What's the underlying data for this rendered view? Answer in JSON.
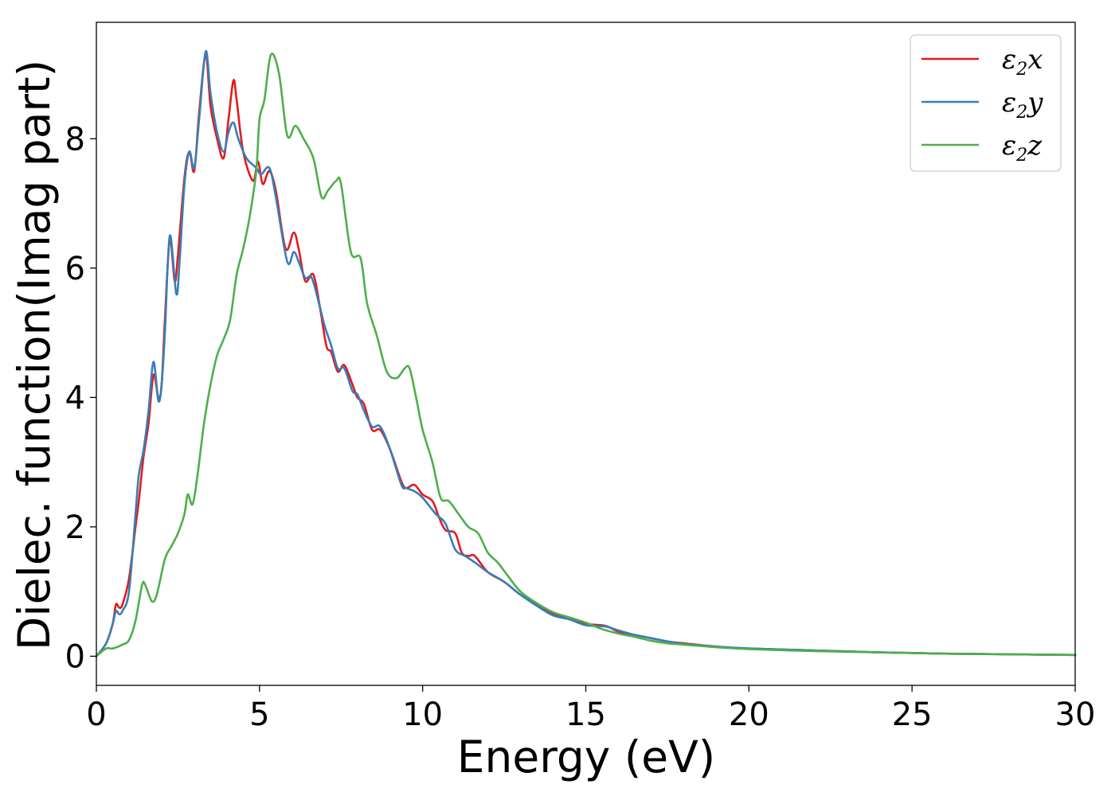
{
  "chart_data": {
    "type": "line",
    "title": "",
    "xlabel": "Energy (eV)",
    "ylabel": "Dielec. function(Imag part)",
    "xlim": [
      0,
      30
    ],
    "ylim": [
      -0.45,
      9.8
    ],
    "xticks": [
      0,
      5,
      10,
      15,
      20,
      25,
      30
    ],
    "yticks": [
      0,
      2,
      4,
      6,
      8
    ],
    "grid": false,
    "legend_position": "top-right",
    "series": [
      {
        "name": "ε2x",
        "legend_base": "ε",
        "legend_sub": "2",
        "legend_var": "x",
        "color": "#e41a1c",
        "points": [
          [
            0,
            0
          ],
          [
            0.3,
            0.2
          ],
          [
            0.5,
            0.5
          ],
          [
            0.6,
            0.8
          ],
          [
            0.7,
            0.75
          ],
          [
            0.8,
            0.8
          ],
          [
            1.0,
            1.2
          ],
          [
            1.2,
            2.0
          ],
          [
            1.3,
            2.4
          ],
          [
            1.45,
            3.1
          ],
          [
            1.6,
            3.6
          ],
          [
            1.75,
            4.35
          ],
          [
            1.9,
            4.0
          ],
          [
            2.0,
            4.2
          ],
          [
            2.1,
            5.2
          ],
          [
            2.25,
            6.45
          ],
          [
            2.4,
            5.8
          ],
          [
            2.5,
            6.2
          ],
          [
            2.7,
            7.4
          ],
          [
            2.85,
            7.8
          ],
          [
            3.0,
            7.5
          ],
          [
            3.15,
            8.4
          ],
          [
            3.35,
            9.3
          ],
          [
            3.5,
            8.5
          ],
          [
            3.7,
            8.0
          ],
          [
            3.9,
            7.7
          ],
          [
            4.05,
            8.3
          ],
          [
            4.2,
            8.9
          ],
          [
            4.3,
            8.6
          ],
          [
            4.5,
            7.8
          ],
          [
            4.8,
            7.35
          ],
          [
            4.95,
            7.65
          ],
          [
            5.1,
            7.3
          ],
          [
            5.3,
            7.5
          ],
          [
            5.5,
            7.2
          ],
          [
            5.8,
            6.3
          ],
          [
            6.05,
            6.55
          ],
          [
            6.2,
            6.3
          ],
          [
            6.4,
            5.8
          ],
          [
            6.65,
            5.9
          ],
          [
            6.85,
            5.4
          ],
          [
            7.05,
            4.8
          ],
          [
            7.2,
            4.7
          ],
          [
            7.4,
            4.4
          ],
          [
            7.6,
            4.5
          ],
          [
            7.85,
            4.2
          ],
          [
            8.0,
            4.0
          ],
          [
            8.2,
            3.9
          ],
          [
            8.45,
            3.5
          ],
          [
            8.7,
            3.5
          ],
          [
            9.0,
            3.2
          ],
          [
            9.35,
            2.7
          ],
          [
            9.5,
            2.6
          ],
          [
            9.75,
            2.65
          ],
          [
            10.0,
            2.5
          ],
          [
            10.3,
            2.4
          ],
          [
            10.5,
            2.15
          ],
          [
            10.7,
            1.95
          ],
          [
            11.0,
            1.9
          ],
          [
            11.2,
            1.6
          ],
          [
            11.4,
            1.55
          ],
          [
            11.6,
            1.55
          ],
          [
            12.0,
            1.3
          ],
          [
            12.5,
            1.15
          ],
          [
            13.0,
            0.95
          ],
          [
            13.5,
            0.8
          ],
          [
            14.0,
            0.65
          ],
          [
            14.5,
            0.58
          ],
          [
            15.0,
            0.5
          ],
          [
            15.6,
            0.47
          ],
          [
            16.0,
            0.38
          ],
          [
            16.5,
            0.33
          ],
          [
            17.0,
            0.28
          ],
          [
            17.5,
            0.23
          ],
          [
            18.0,
            0.2
          ],
          [
            19.0,
            0.15
          ],
          [
            20.0,
            0.12
          ],
          [
            22.0,
            0.09
          ],
          [
            24.0,
            0.06
          ],
          [
            26.0,
            0.04
          ],
          [
            28.0,
            0.03
          ],
          [
            30.0,
            0.02
          ]
        ]
      },
      {
        "name": "ε2y",
        "legend_base": "ε",
        "legend_sub": "2",
        "legend_var": "y",
        "color": "#377eb8",
        "points": [
          [
            0,
            0
          ],
          [
            0.3,
            0.2
          ],
          [
            0.5,
            0.5
          ],
          [
            0.6,
            0.7
          ],
          [
            0.7,
            0.65
          ],
          [
            0.8,
            0.7
          ],
          [
            1.0,
            1.0
          ],
          [
            1.2,
            2.2
          ],
          [
            1.3,
            2.8
          ],
          [
            1.45,
            3.2
          ],
          [
            1.6,
            3.8
          ],
          [
            1.75,
            4.55
          ],
          [
            1.9,
            3.95
          ],
          [
            2.0,
            4.2
          ],
          [
            2.1,
            5.0
          ],
          [
            2.25,
            6.5
          ],
          [
            2.45,
            5.6
          ],
          [
            2.55,
            6.1
          ],
          [
            2.7,
            7.3
          ],
          [
            2.85,
            7.8
          ],
          [
            3.0,
            7.55
          ],
          [
            3.15,
            8.3
          ],
          [
            3.35,
            9.35
          ],
          [
            3.5,
            8.7
          ],
          [
            3.7,
            8.1
          ],
          [
            3.9,
            7.8
          ],
          [
            4.05,
            8.1
          ],
          [
            4.2,
            8.25
          ],
          [
            4.35,
            8.0
          ],
          [
            4.6,
            7.7
          ],
          [
            4.9,
            7.55
          ],
          [
            5.05,
            7.45
          ],
          [
            5.3,
            7.55
          ],
          [
            5.5,
            7.1
          ],
          [
            5.85,
            6.1
          ],
          [
            6.05,
            6.25
          ],
          [
            6.2,
            6.1
          ],
          [
            6.4,
            5.85
          ],
          [
            6.6,
            5.85
          ],
          [
            6.85,
            5.4
          ],
          [
            7.0,
            5.1
          ],
          [
            7.2,
            4.8
          ],
          [
            7.4,
            4.45
          ],
          [
            7.6,
            4.45
          ],
          [
            7.85,
            4.1
          ],
          [
            8.0,
            4.05
          ],
          [
            8.2,
            3.8
          ],
          [
            8.45,
            3.55
          ],
          [
            8.7,
            3.55
          ],
          [
            9.0,
            3.2
          ],
          [
            9.35,
            2.65
          ],
          [
            9.5,
            2.6
          ],
          [
            9.75,
            2.55
          ],
          [
            10.0,
            2.45
          ],
          [
            10.4,
            2.2
          ],
          [
            10.7,
            2.05
          ],
          [
            11.0,
            1.65
          ],
          [
            11.3,
            1.55
          ],
          [
            11.6,
            1.45
          ],
          [
            12.0,
            1.3
          ],
          [
            12.5,
            1.15
          ],
          [
            13.0,
            0.95
          ],
          [
            13.5,
            0.78
          ],
          [
            14.0,
            0.63
          ],
          [
            14.5,
            0.57
          ],
          [
            15.0,
            0.48
          ],
          [
            15.6,
            0.46
          ],
          [
            16.0,
            0.4
          ],
          [
            16.5,
            0.33
          ],
          [
            17.0,
            0.28
          ],
          [
            17.5,
            0.23
          ],
          [
            18.0,
            0.19
          ],
          [
            19.0,
            0.15
          ],
          [
            20.0,
            0.12
          ],
          [
            22.0,
            0.09
          ],
          [
            24.0,
            0.06
          ],
          [
            26.0,
            0.04
          ],
          [
            28.0,
            0.03
          ],
          [
            30.0,
            0.02
          ]
        ]
      },
      {
        "name": "ε2z",
        "legend_base": "ε",
        "legend_sub": "2",
        "legend_var": "z",
        "color": "#4daf4a",
        "points": [
          [
            0,
            0
          ],
          [
            0.3,
            0.12
          ],
          [
            0.5,
            0.12
          ],
          [
            0.8,
            0.18
          ],
          [
            1.0,
            0.25
          ],
          [
            1.2,
            0.55
          ],
          [
            1.4,
            1.1
          ],
          [
            1.5,
            1.1
          ],
          [
            1.7,
            0.85
          ],
          [
            1.85,
            0.95
          ],
          [
            2.1,
            1.5
          ],
          [
            2.3,
            1.7
          ],
          [
            2.5,
            1.9
          ],
          [
            2.7,
            2.2
          ],
          [
            2.8,
            2.5
          ],
          [
            2.95,
            2.35
          ],
          [
            3.1,
            2.8
          ],
          [
            3.3,
            3.6
          ],
          [
            3.5,
            4.2
          ],
          [
            3.7,
            4.65
          ],
          [
            3.9,
            4.9
          ],
          [
            4.1,
            5.2
          ],
          [
            4.3,
            5.9
          ],
          [
            4.5,
            6.3
          ],
          [
            4.7,
            6.8
          ],
          [
            4.9,
            7.5
          ],
          [
            5.0,
            8.3
          ],
          [
            5.15,
            8.6
          ],
          [
            5.35,
            9.3
          ],
          [
            5.6,
            9.0
          ],
          [
            5.85,
            8.05
          ],
          [
            6.1,
            8.2
          ],
          [
            6.35,
            8.0
          ],
          [
            6.65,
            7.7
          ],
          [
            6.9,
            7.1
          ],
          [
            7.1,
            7.2
          ],
          [
            7.35,
            7.35
          ],
          [
            7.5,
            7.3
          ],
          [
            7.8,
            6.25
          ],
          [
            8.1,
            6.15
          ],
          [
            8.3,
            5.45
          ],
          [
            8.6,
            4.95
          ],
          [
            8.9,
            4.4
          ],
          [
            9.2,
            4.3
          ],
          [
            9.45,
            4.45
          ],
          [
            9.6,
            4.45
          ],
          [
            9.8,
            4.0
          ],
          [
            10.0,
            3.5
          ],
          [
            10.3,
            3.0
          ],
          [
            10.55,
            2.45
          ],
          [
            10.8,
            2.4
          ],
          [
            11.1,
            2.2
          ],
          [
            11.4,
            2.0
          ],
          [
            11.7,
            1.9
          ],
          [
            12.0,
            1.6
          ],
          [
            12.3,
            1.45
          ],
          [
            12.6,
            1.25
          ],
          [
            13.0,
            1.0
          ],
          [
            13.5,
            0.82
          ],
          [
            14.0,
            0.68
          ],
          [
            14.5,
            0.6
          ],
          [
            15.0,
            0.52
          ],
          [
            15.5,
            0.42
          ],
          [
            16.0,
            0.35
          ],
          [
            16.5,
            0.3
          ],
          [
            17.0,
            0.24
          ],
          [
            17.5,
            0.2
          ],
          [
            18.0,
            0.18
          ],
          [
            19.0,
            0.14
          ],
          [
            20.0,
            0.11
          ],
          [
            22.0,
            0.08
          ],
          [
            24.0,
            0.06
          ],
          [
            26.0,
            0.04
          ],
          [
            28.0,
            0.03
          ],
          [
            30.0,
            0.02
          ]
        ]
      }
    ]
  }
}
